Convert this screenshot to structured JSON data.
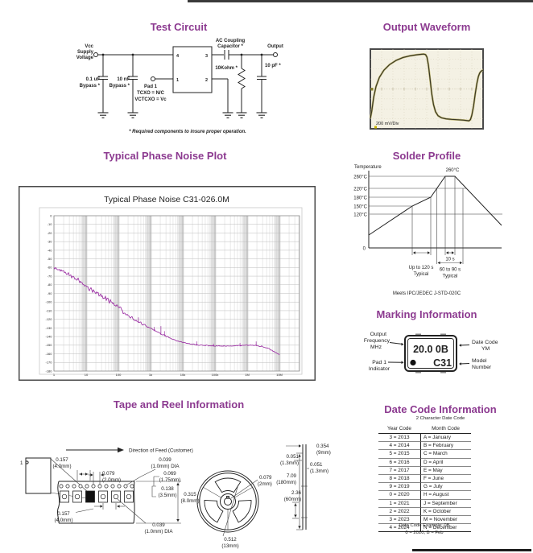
{
  "colors": {
    "heading": "#8c3a90",
    "ink": "#222222",
    "trace_purple": "#9b2fa3",
    "scope_bg": "#f4f1e4",
    "scope_trace": "#3a3823",
    "scope_trace_halo": "#c3ba79",
    "grid_major": "#9f9f9f",
    "grid_minor": "#d2d2d2",
    "grid_band": "#e2e2e2",
    "grid_h": "#bdbdbd"
  },
  "test_circuit": {
    "title": "Test Circuit",
    "vcc": [
      "Vcc",
      "Supply",
      "Voltage"
    ],
    "cap1": [
      "0.1 uF",
      "Bypass *"
    ],
    "cap2": [
      "10 nF",
      "Bypass *"
    ],
    "pad1": [
      "Pad 1",
      "TCXO = N/C",
      "VCTCXO = Vc"
    ],
    "pins": {
      "p4": "4",
      "p3": "3",
      "p1": "1",
      "p2": "2"
    },
    "ac_cap": [
      "AC Coupling",
      "Capacitor *"
    ],
    "output": "Output",
    "resistor": "10Kohm *",
    "load_cap": "10 pF *",
    "footnote": "* Required components to insure proper operation."
  },
  "output_waveform": {
    "title": "Output Waveform",
    "scale_label": "200 mV/Div",
    "points_norm": [
      [
        0,
        0.87
      ],
      [
        0.012,
        0.78
      ],
      [
        0.03,
        0.6
      ],
      [
        0.05,
        0.47
      ],
      [
        0.08,
        0.355
      ],
      [
        0.12,
        0.265
      ],
      [
        0.17,
        0.195
      ],
      [
        0.23,
        0.14
      ],
      [
        0.29,
        0.105
      ],
      [
        0.35,
        0.085
      ],
      [
        0.41,
        0.072
      ],
      [
        0.455,
        0.065
      ],
      [
        0.475,
        0.063
      ],
      [
        0.49,
        0.07
      ],
      [
        0.502,
        0.1
      ],
      [
        0.515,
        0.2
      ],
      [
        0.53,
        0.38
      ],
      [
        0.545,
        0.565
      ],
      [
        0.56,
        0.695
      ],
      [
        0.578,
        0.785
      ],
      [
        0.6,
        0.835
      ],
      [
        0.63,
        0.862
      ],
      [
        0.67,
        0.875
      ],
      [
        0.72,
        0.882
      ],
      [
        0.78,
        0.887
      ],
      [
        0.83,
        0.892
      ],
      [
        0.862,
        0.898
      ],
      [
        0.875,
        0.9
      ],
      [
        0.888,
        0.885
      ],
      [
        0.9,
        0.83
      ],
      [
        0.915,
        0.72
      ],
      [
        0.93,
        0.565
      ],
      [
        0.945,
        0.43
      ],
      [
        0.958,
        0.345
      ],
      [
        0.97,
        0.3
      ],
      [
        0.982,
        0.278
      ],
      [
        0.993,
        0.268
      ],
      [
        1,
        0.265
      ]
    ]
  },
  "phase_noise_section": {
    "title": "Typical Phase Noise Plot"
  },
  "chart_data": {
    "type": "line",
    "title": "Typical Phase Noise C31-026.0M",
    "xscale": "log",
    "x_ticks": [
      "1",
      "10",
      "100",
      "1k",
      "10k",
      "100k",
      "1M",
      "10M"
    ],
    "ylim": [
      -180,
      0
    ],
    "y_ticks": [
      "0",
      "-10",
      "-20",
      "-30",
      "-40",
      "-50",
      "-60",
      "-70",
      "-80",
      "-90",
      "-100",
      "-110",
      "-120",
      "-130",
      "-140",
      "-150",
      "-160",
      "-170",
      "-180"
    ],
    "grid": "log-minor",
    "legend_position": "none",
    "series": [
      {
        "name": "C31-026.0M phase noise (dBc/Hz)",
        "points": [
          [
            1,
            -60
          ],
          [
            1.5,
            -63
          ],
          [
            2,
            -65.5
          ],
          [
            3,
            -69
          ],
          [
            4,
            -71.5
          ],
          [
            5,
            -73.5
          ],
          [
            7,
            -77
          ],
          [
            10,
            -81.5
          ],
          [
            15,
            -86
          ],
          [
            20,
            -89
          ],
          [
            30,
            -93
          ],
          [
            50,
            -98.5
          ],
          [
            70,
            -102
          ],
          [
            100,
            -106.5
          ],
          [
            150,
            -112
          ],
          [
            200,
            -115.5
          ],
          [
            300,
            -119.5
          ],
          [
            500,
            -124.5
          ],
          [
            700,
            -127.5
          ],
          [
            1000,
            -130.5
          ],
          [
            1500,
            -134
          ],
          [
            2000,
            -136.5
          ],
          [
            3000,
            -139.5
          ],
          [
            5000,
            -143
          ],
          [
            7000,
            -145
          ],
          [
            10000,
            -146.5
          ],
          [
            15000,
            -148
          ],
          [
            20000,
            -149
          ],
          [
            30000,
            -149.8
          ],
          [
            50000,
            -150.3
          ],
          [
            70000,
            -150.6
          ],
          [
            100000,
            -150.8
          ],
          [
            200000,
            -151
          ],
          [
            300000,
            -151
          ],
          [
            500000,
            -150.5
          ],
          [
            700000,
            -150.2
          ],
          [
            1000000,
            -150
          ],
          [
            1500000,
            -150
          ],
          [
            2000000,
            -150.2
          ],
          [
            3000000,
            -151.5
          ],
          [
            5000000,
            -154.5
          ],
          [
            7000000,
            -157.5
          ],
          [
            10000000,
            -161
          ]
        ]
      }
    ],
    "noise_band_db": [
      [
        1,
        2.5
      ],
      [
        10,
        3.2
      ],
      [
        50,
        4
      ],
      [
        120,
        4.5
      ],
      [
        200,
        2.2
      ],
      [
        500,
        1.5
      ],
      [
        1000,
        1.1
      ],
      [
        5000,
        0.9
      ],
      [
        20000,
        0.7
      ],
      [
        100000,
        0.8
      ],
      [
        1000000,
        0.7
      ],
      [
        10000000,
        0.9
      ]
    ],
    "spikes": [
      [
        420,
        5
      ],
      [
        1300,
        4
      ],
      [
        2100,
        9
      ],
      [
        2700,
        5
      ],
      [
        27000,
        4
      ],
      [
        90000,
        2.5
      ],
      [
        600000,
        3
      ],
      [
        1900000,
        4.5
      ]
    ]
  },
  "solder_profile": {
    "title": "Solder Profile",
    "y_axis_label": "Temperature",
    "temp_labels": [
      "260°C",
      "220°C",
      "180°C",
      "150°C",
      "120°C"
    ],
    "zero_label": "0",
    "peak_label": "260°C",
    "ramp_label": [
      "Up to 120 s",
      "Typical"
    ],
    "peak_time_label": "10 s",
    "reflow_label": [
      "60 to 90 s",
      "Typical"
    ],
    "caption": "Meets IPC/JEDEC J-STD-020C"
  },
  "marking": {
    "title": "Marking Information",
    "chip_line1": "20.0 0B",
    "chip_line2": "C31",
    "label_output_freq": [
      "Output",
      "Frequency",
      "MHz"
    ],
    "label_pad1": [
      "Pad 1",
      "Indicator"
    ],
    "label_date_code": [
      "Date Code",
      "YM"
    ],
    "label_model": [
      "Model",
      "Number"
    ]
  },
  "tape_reel": {
    "title": "Tape and Reel Information",
    "direction": "Direction of Feed (Customer)",
    "index_label": "1",
    "dim_pitch_top": [
      "0.157",
      "(4.0mm)"
    ],
    "dim_sprocket_pitch": [
      "0.079",
      "(2.0mm)"
    ],
    "dim_hole_top": [
      "0.039",
      "(1.0mm) DIA"
    ],
    "dim_hole_edge": [
      "0.069",
      "(1.75mm)"
    ],
    "dim_hole_pocket": [
      "0.138",
      "(3.5mm)"
    ],
    "dim_tape_width": [
      "0.315",
      "(8.0mm)"
    ],
    "dim_pitch_bottom": [
      "0.157",
      "(4.0mm)"
    ],
    "dim_pocket_hole": [
      "0.039",
      "(1.0mm) DIA"
    ],
    "dim_hub": [
      "0.079",
      "(2mm)"
    ],
    "dim_reel_center": [
      "0.512",
      "(13mm)"
    ],
    "dim_side_width": [
      "0.354",
      "(9mm)"
    ],
    "dim_side_left": [
      "0.051",
      "(1.3mm)"
    ],
    "dim_side_right": [
      "0.051",
      "(1.3mm)"
    ],
    "dim_reel_dia": [
      "7.09",
      "(180mm)"
    ],
    "dim_hub_dia": [
      "2.36",
      "(60mm)"
    ]
  },
  "date_code": {
    "title": "Date Code Information",
    "subtitle": "2 Character Date Code",
    "col_year": "Year Code",
    "col_month": "Month Code",
    "rows": [
      [
        "3 = 2013",
        "A = January"
      ],
      [
        "4 = 2014",
        "B = February"
      ],
      [
        "5 = 2015",
        "C = March"
      ],
      [
        "6 = 2016",
        "D = April"
      ],
      [
        "7 = 2017",
        "E = May"
      ],
      [
        "8 = 2018",
        "F = June"
      ],
      [
        "9 = 2019",
        "G = July"
      ],
      [
        "0 = 2020",
        "H = August"
      ],
      [
        "1 = 2021",
        "J = September"
      ],
      [
        "2 = 2022",
        "K = October"
      ],
      [
        "3 = 2023",
        "M = November"
      ],
      [
        "4 = 2024",
        "N = December"
      ]
    ],
    "example_line1": "Date Code Example: 0B",
    "example_line2": "0 = 2020, B = Feb"
  }
}
